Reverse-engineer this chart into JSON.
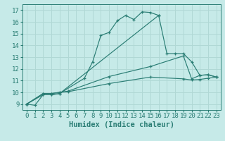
{
  "xlabel": "Humidex (Indice chaleur)",
  "xlim": [
    -0.5,
    23.5
  ],
  "ylim": [
    8.5,
    17.5
  ],
  "yticks": [
    9,
    10,
    11,
    12,
    13,
    14,
    15,
    16,
    17
  ],
  "xticks": [
    0,
    1,
    2,
    3,
    4,
    5,
    6,
    7,
    8,
    9,
    10,
    11,
    12,
    13,
    14,
    15,
    16,
    17,
    18,
    19,
    20,
    21,
    22,
    23
  ],
  "bg_color": "#c6eae8",
  "grid_color": "#b0d8d5",
  "line_color": "#2a7d74",
  "curve1_x": [
    0,
    1,
    2,
    3,
    4,
    7,
    8,
    9,
    10,
    11,
    12,
    13,
    14,
    15,
    16
  ],
  "curve1_y": [
    9.0,
    8.9,
    9.8,
    9.8,
    9.9,
    11.2,
    12.6,
    14.85,
    15.1,
    16.1,
    16.55,
    16.2,
    16.85,
    16.8,
    16.55
  ],
  "curve2_x": [
    0,
    2,
    3,
    4,
    16,
    17,
    18,
    19,
    20,
    21,
    22,
    23
  ],
  "curve2_y": [
    9.0,
    9.8,
    9.8,
    9.9,
    16.55,
    13.3,
    13.3,
    13.3,
    12.6,
    11.45,
    11.5,
    11.3
  ],
  "curve3_x": [
    0,
    2,
    3,
    4,
    5,
    10,
    15,
    19,
    20,
    21,
    22,
    23
  ],
  "curve3_y": [
    9.0,
    9.9,
    9.9,
    10.0,
    10.1,
    11.35,
    12.2,
    13.1,
    11.15,
    11.45,
    11.5,
    11.3
  ],
  "curve4_x": [
    0,
    2,
    3,
    4,
    5,
    10,
    15,
    19,
    20,
    21,
    22,
    23
  ],
  "curve4_y": [
    9.0,
    9.9,
    9.9,
    10.0,
    10.05,
    10.75,
    11.3,
    11.15,
    11.05,
    11.1,
    11.2,
    11.3
  ],
  "font_family": "monospace",
  "tick_fontsize": 6.5,
  "label_fontsize": 7.5
}
